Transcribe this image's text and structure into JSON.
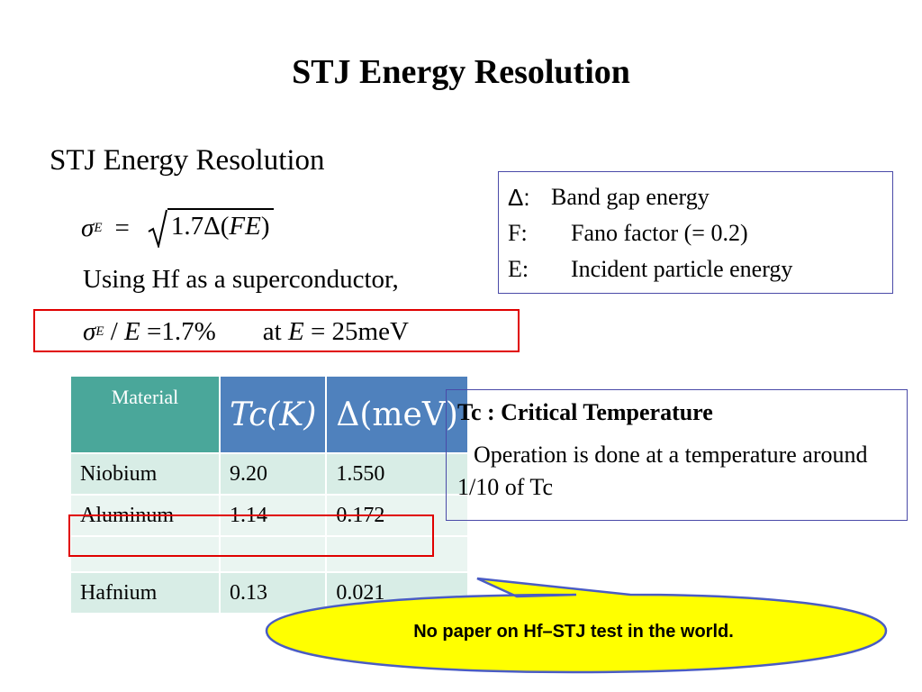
{
  "slide": {
    "title": "STJ Energy Resolution",
    "subtitle": "STJ Energy Resolution",
    "eq1": {
      "sigma": "σ",
      "sub": "E",
      "equals": "=",
      "coef": "1.7Δ(",
      "fe": "FE",
      "close": ")"
    },
    "using_text": "Using Hf as a superconductor,",
    "eq2": {
      "sigma": "σ",
      "sub": "E",
      "slash": " / ",
      "e": "E",
      "rest": " =1.7%",
      "at": "at ",
      "e2": "E",
      "val": " = 25meV"
    }
  },
  "legend": {
    "rows": [
      {
        "sym": "Δ:",
        "desc": "Band gap energy"
      },
      {
        "sym": "F:",
        "desc": "Fano factor (= 0.2)"
      },
      {
        "sym": "E:",
        "desc": "Incident particle energy"
      }
    ]
  },
  "table": {
    "headers": [
      "Material",
      "Tc(K)",
      "Δ(meV)"
    ],
    "rows": [
      [
        "Niobium",
        "9.20",
        "1.550"
      ],
      [
        "Aluminum",
        "1.14",
        "0.172"
      ],
      [
        "",
        "",
        ""
      ],
      [
        "Hafnium",
        "0.13",
        "0.021"
      ]
    ]
  },
  "tc_box": {
    "heading": "Tc : Critical Temperature",
    "body": "Operation is done at a temperature around 1/10 of Tc"
  },
  "callout": {
    "text": "No paper on Hf–STJ test in the world."
  },
  "colors": {
    "accent_red": "#e00000",
    "table_header_teal": "#4aa79a",
    "table_header_blue": "#4f81bd",
    "callout_fill": "#ffff00",
    "box_border": "#4a4aa8"
  }
}
